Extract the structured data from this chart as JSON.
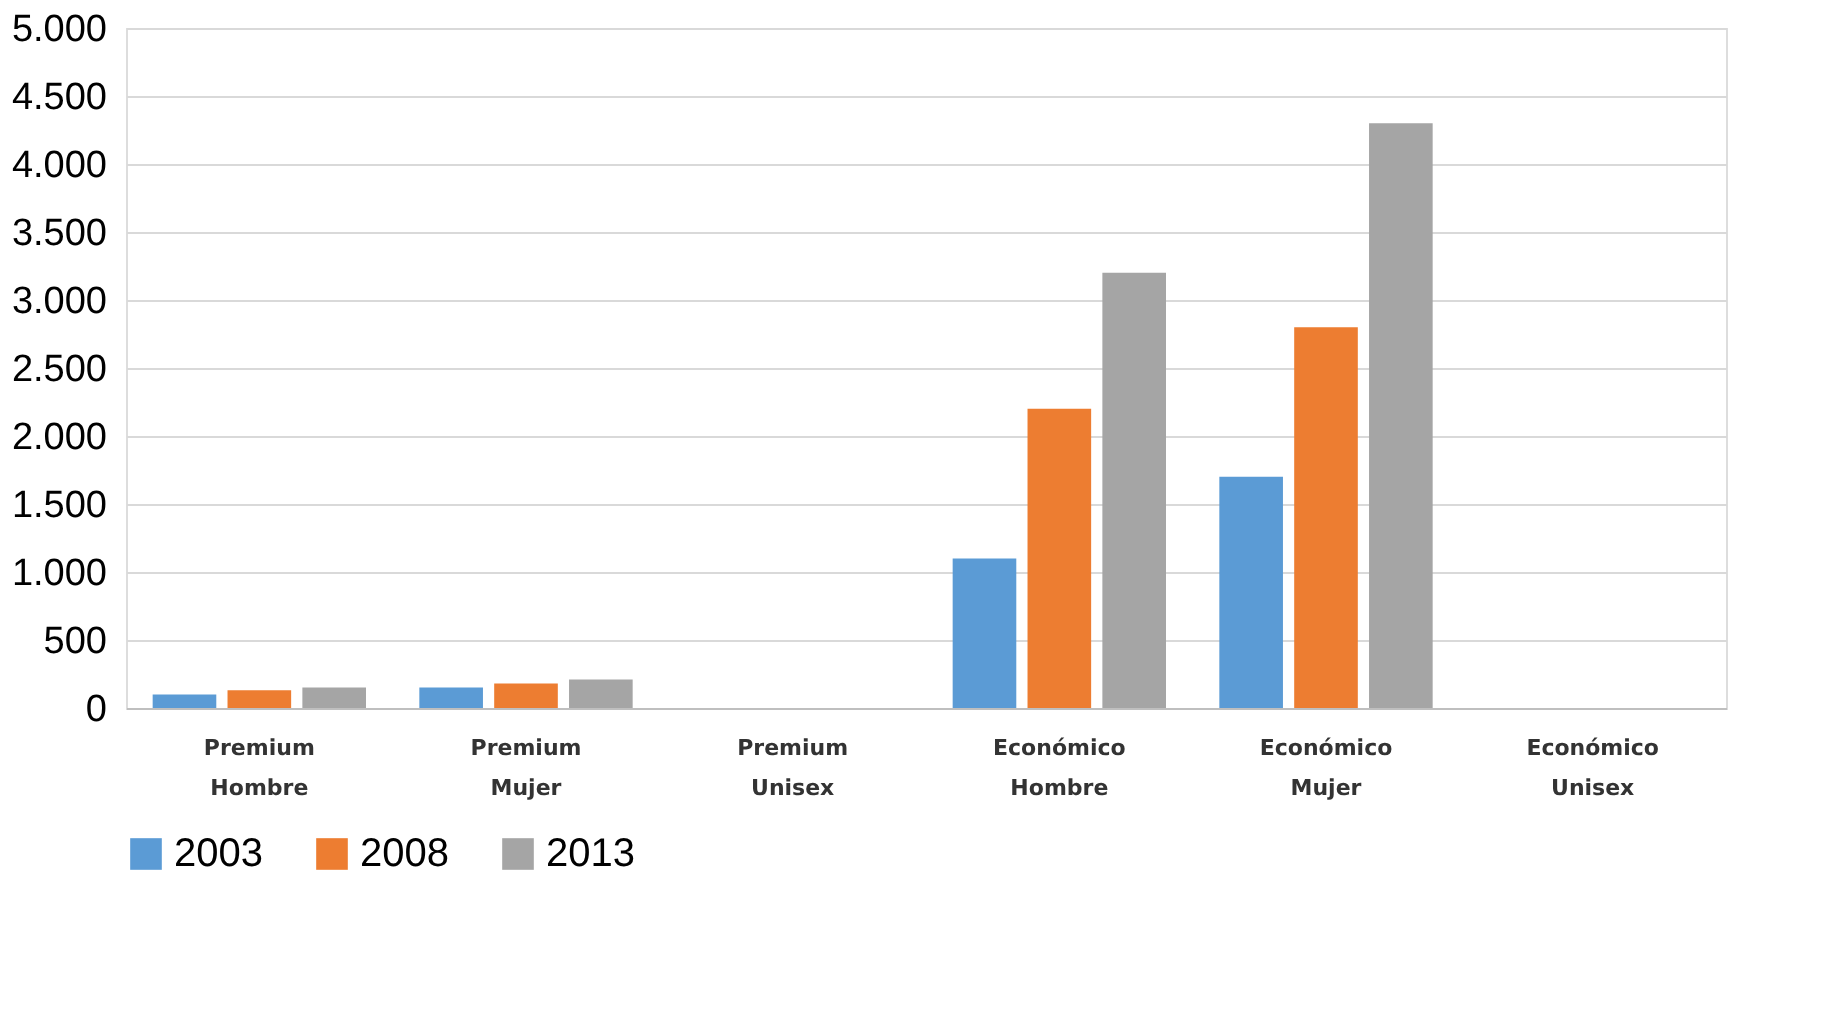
{
  "chart_data": {
    "type": "bar",
    "categories": [
      "Premium Hombre",
      "Premium Mujer",
      "Premium Unisex",
      "Económico Hombre",
      "Económico Mujer",
      "Económico Unisex"
    ],
    "series": [
      {
        "name": "2003",
        "color": "#5b9bd5",
        "values": [
          100,
          150,
          0,
          1100,
          1700,
          0
        ]
      },
      {
        "name": "2008",
        "color": "#ed7d31",
        "values": [
          130,
          180,
          0,
          2200,
          2800,
          0
        ]
      },
      {
        "name": "2013",
        "color": "#a5a5a5",
        "values": [
          150,
          210,
          0,
          3200,
          4300,
          0
        ]
      }
    ],
    "ylim": [
      0,
      5000
    ],
    "yticks": [
      0,
      500,
      {
        "value": 1000,
        "label": "1.000"
      },
      {
        "value": 1500,
        "label": "1.500"
      },
      {
        "value": 2000,
        "label": "2.000"
      },
      {
        "value": 2500,
        "label": "2.500"
      },
      {
        "value": 3000,
        "label": "3.000"
      },
      {
        "value": 3500,
        "label": "3.500"
      },
      {
        "value": 4000,
        "label": "4.000"
      },
      {
        "value": 4500,
        "label": "4.500"
      },
      {
        "value": 5000,
        "label": "5.000"
      }
    ],
    "grid": "y",
    "legend": "bottom"
  }
}
